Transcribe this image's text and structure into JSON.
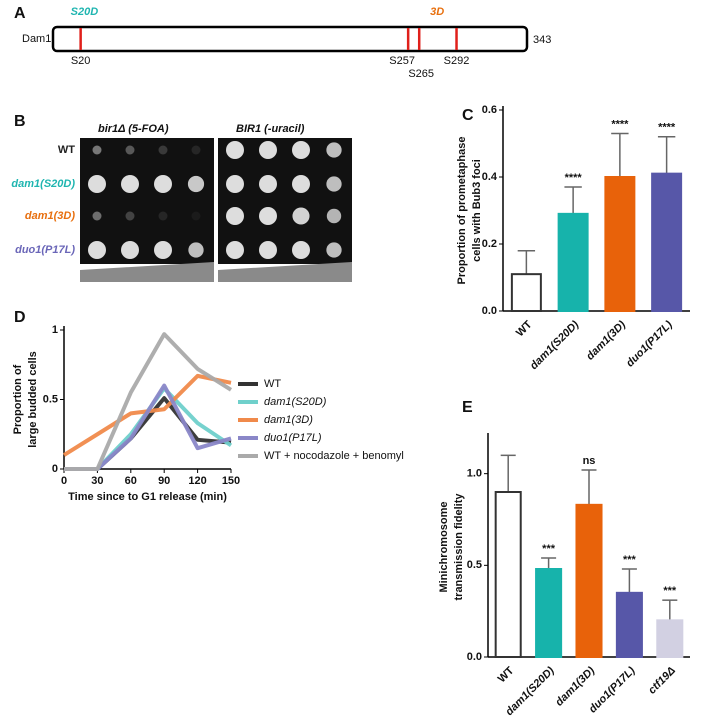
{
  "panel_labels": [
    "A",
    "B",
    "C",
    "D",
    "E"
  ],
  "diagram": {
    "protein": "Dam1",
    "length": 343,
    "mutations": [
      {
        "label": "S20D",
        "color": "#1fb5b0"
      },
      {
        "label": "3D",
        "color": "#e8700f"
      }
    ],
    "sites": [
      {
        "label": "S20",
        "position": 20
      },
      {
        "label": "S257",
        "position": 257
      },
      {
        "label": "S265",
        "position": 265
      },
      {
        "label": "S292",
        "position": 292
      }
    ]
  },
  "spot_assay": {
    "conditions": [
      "bir1Δ (5-FOA)",
      "BIR1 (-uracil)"
    ],
    "strains": [
      {
        "label": "WT",
        "color": "#222222"
      },
      {
        "label": "dam1(S20D)",
        "color": "#1fb5b0"
      },
      {
        "label": "dam1(3D)",
        "color": "#e8700f"
      },
      {
        "label": "duo1(P17L)",
        "color": "#6a66b8"
      }
    ]
  },
  "chart_data": [
    {
      "type": "bar",
      "ylabel": [
        "Proportion of prometaphase",
        "cells with Bub3 foci"
      ],
      "categories": [
        "WT",
        "dam1(S20D)",
        "dam1(3D)",
        "duo1(P17L)"
      ],
      "values": [
        0.11,
        0.29,
        0.4,
        0.41
      ],
      "errors": [
        0.07,
        0.08,
        0.13,
        0.11
      ],
      "annotations": [
        null,
        "****",
        "****",
        "****"
      ],
      "colors": [
        "#ffffff",
        "#17b3ab",
        "#e8620a",
        "#5757a8"
      ],
      "ylim": [
        0,
        0.6
      ],
      "yticks": [
        {
          "value": 0,
          "label": "0.0"
        },
        {
          "value": 0.2,
          "label": "0.2"
        },
        {
          "value": 0.4,
          "label": "0.4"
        },
        {
          "value": 0.6,
          "label": "0.6"
        }
      ]
    },
    {
      "type": "line",
      "xlabel": "Time since to G1 release (min)",
      "ylabel": [
        "Proportion of",
        "large budded cells"
      ],
      "x": [
        0,
        30,
        60,
        90,
        120,
        150
      ],
      "series": [
        {
          "name": "WT",
          "color": "#333333",
          "values": [
            0,
            0,
            0.22,
            0.51,
            0.21,
            0.19
          ]
        },
        {
          "name": "dam1(S20D)",
          "color": "#6fd0cb",
          "values": [
            0,
            0,
            0.25,
            0.58,
            0.33,
            0.17
          ]
        },
        {
          "name": "dam1(3D)",
          "color": "#f08a4b",
          "values": [
            0.1,
            0.25,
            0.4,
            0.43,
            0.67,
            0.62
          ]
        },
        {
          "name": "duo1(P17L)",
          "color": "#8a87c8",
          "values": [
            0,
            0,
            0.22,
            0.6,
            0.15,
            0.22
          ]
        },
        {
          "name": "WT + nocodazole + benomyl",
          "color": "#aaaaaa",
          "values": [
            0,
            0,
            0.55,
            0.97,
            0.72,
            0.57
          ]
        }
      ],
      "xlim": [
        0,
        150
      ],
      "xticks": [
        0,
        30,
        60,
        90,
        120,
        150
      ],
      "ylim": [
        0,
        1
      ],
      "yticks": [
        0,
        0.5,
        1
      ]
    },
    {
      "type": "bar",
      "ylabel": [
        "Minichromosome",
        "transmission fidelity"
      ],
      "categories": [
        "WT",
        "dam1(S20D)",
        "dam1(3D)",
        "duo1(P17L)",
        "ctf19Δ"
      ],
      "values": [
        0.9,
        0.48,
        0.83,
        0.35,
        0.2
      ],
      "errors": [
        0.2,
        0.06,
        0.19,
        0.13,
        0.11
      ],
      "annotations": [
        null,
        "***",
        "ns",
        "***",
        "***"
      ],
      "colors": [
        "#ffffff",
        "#17b3ab",
        "#e8620a",
        "#5757a8",
        "#d2d0e2"
      ],
      "ylim": [
        0,
        1.2
      ],
      "yticks": [
        {
          "value": 0,
          "label": "0.0"
        },
        {
          "value": 0.5,
          "label": "0.5"
        },
        {
          "value": 1,
          "label": "1.0"
        }
      ]
    }
  ]
}
